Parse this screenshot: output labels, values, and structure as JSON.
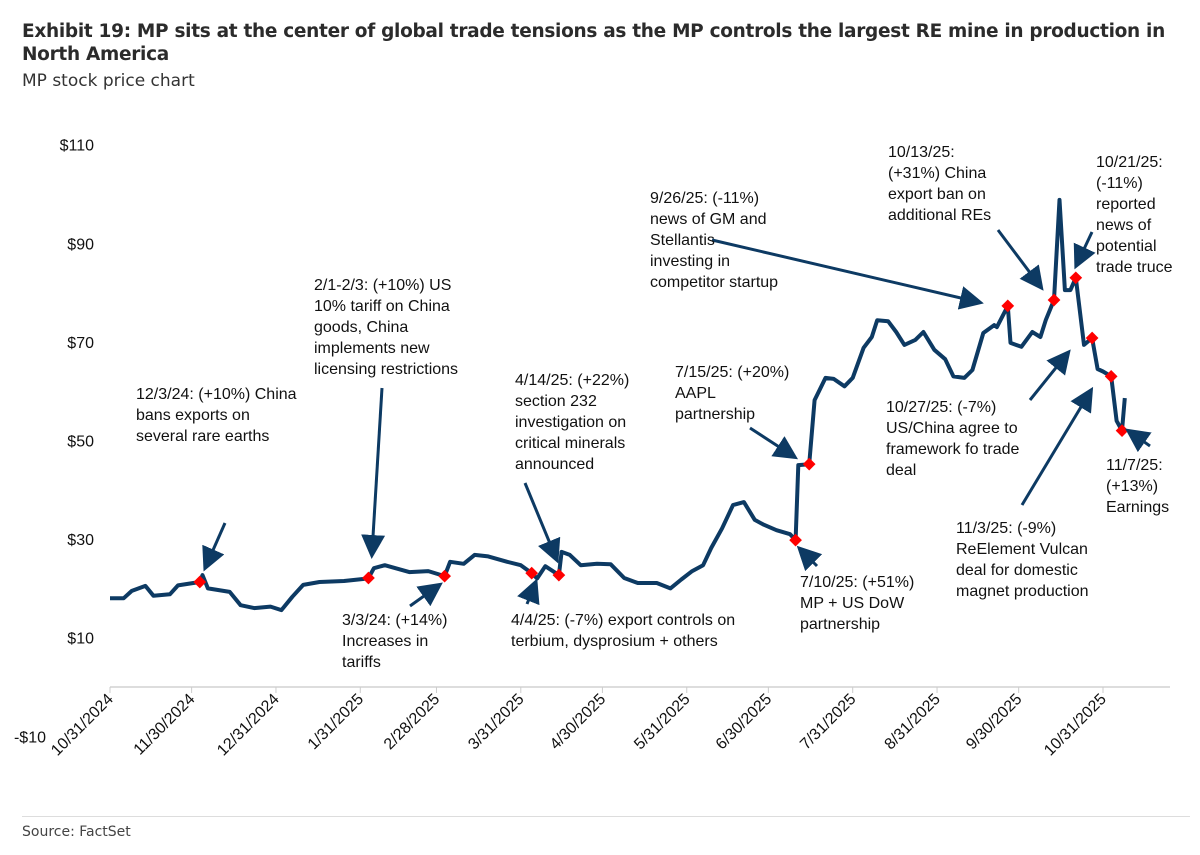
{
  "title": "Exhibit 19: MP sits at the center of global trade tensions as the MP controls the largest RE mine in production in North America",
  "subtitle": "MP stock price chart",
  "source": "Source: FactSet",
  "colors": {
    "line": "#0d3a63",
    "marker": "#ff0000",
    "arrow": "#0d3a63"
  },
  "chart_data": {
    "type": "line",
    "title": "",
    "xlabel": "",
    "ylabel": "",
    "ylim": [
      -10,
      110
    ],
    "y_ticks": [
      "-$10",
      "$10",
      "$30",
      "$50",
      "$70",
      "$90",
      "$110"
    ],
    "y_tick_values": [
      -10,
      10,
      30,
      50,
      70,
      90,
      110
    ],
    "x_ticks": [
      "10/31/2024",
      "11/30/2024",
      "12/31/2024",
      "1/31/2025",
      "2/28/2025",
      "3/31/2025",
      "4/30/2025",
      "5/31/2025",
      "6/30/2025",
      "7/31/2025",
      "8/31/2025",
      "9/30/2025",
      "10/31/2025"
    ],
    "grid": false,
    "series": [
      {
        "points": [
          [
            "2024-10-31",
            18
          ],
          [
            "2024-11-05",
            18
          ],
          [
            "2024-11-08",
            19.5
          ],
          [
            "2024-11-13",
            20.5
          ],
          [
            "2024-11-16",
            18.5
          ],
          [
            "2024-11-22",
            18.8
          ],
          [
            "2024-11-25",
            20.6
          ],
          [
            "2024-12-03",
            21.3
          ],
          [
            "2024-12-04",
            22.7
          ],
          [
            "2024-12-06",
            20
          ],
          [
            "2024-12-14",
            19.3
          ],
          [
            "2024-12-18",
            16.6
          ],
          [
            "2024-12-23",
            16
          ],
          [
            "2024-12-29",
            16.3
          ],
          [
            "2025-01-02",
            15.6
          ],
          [
            "2025-01-06",
            18.3
          ],
          [
            "2025-01-10",
            20.7
          ],
          [
            "2025-01-16",
            21.3
          ],
          [
            "2025-01-25",
            21.5
          ],
          [
            "2025-02-01",
            21.9
          ],
          [
            "2025-02-03",
            22.1
          ],
          [
            "2025-02-05",
            24.1
          ],
          [
            "2025-02-09",
            24.7
          ],
          [
            "2025-02-18",
            23.3
          ],
          [
            "2025-02-25",
            23.5
          ],
          [
            "2025-03-03",
            22.5
          ],
          [
            "2025-03-05",
            25.4
          ],
          [
            "2025-03-10",
            25
          ],
          [
            "2025-03-14",
            26.8
          ],
          [
            "2025-03-19",
            26.5
          ],
          [
            "2025-03-26",
            25.4
          ],
          [
            "2025-03-31",
            24.7
          ],
          [
            "2025-04-04",
            23.1
          ],
          [
            "2025-04-06",
            22
          ],
          [
            "2025-04-09",
            24.5
          ],
          [
            "2025-04-14",
            22.7
          ],
          [
            "2025-04-15",
            27.4
          ],
          [
            "2025-04-18",
            26.8
          ],
          [
            "2025-04-22",
            24.7
          ],
          [
            "2025-04-28",
            25
          ],
          [
            "2025-05-03",
            24.9
          ],
          [
            "2025-05-08",
            22.1
          ],
          [
            "2025-05-13",
            21.1
          ],
          [
            "2025-05-20",
            21.1
          ],
          [
            "2025-05-25",
            20
          ],
          [
            "2025-05-29",
            21.8
          ],
          [
            "2025-06-02",
            23.5
          ],
          [
            "2025-06-06",
            24.7
          ],
          [
            "2025-06-09",
            28.2
          ],
          [
            "2025-06-13",
            32.2
          ],
          [
            "2025-06-17",
            36.9
          ],
          [
            "2025-06-21",
            37.5
          ],
          [
            "2025-06-25",
            33.9
          ],
          [
            "2025-06-28",
            33
          ],
          [
            "2025-07-03",
            31.8
          ],
          [
            "2025-07-08",
            31
          ],
          [
            "2025-07-10",
            29.8
          ],
          [
            "2025-07-11",
            45
          ],
          [
            "2025-07-15",
            45.2
          ],
          [
            "2025-07-17",
            58.2
          ],
          [
            "2025-07-21",
            62.7
          ],
          [
            "2025-07-24",
            62.5
          ],
          [
            "2025-07-28",
            61
          ],
          [
            "2025-07-31",
            62.7
          ],
          [
            "2025-08-04",
            68.8
          ],
          [
            "2025-08-07",
            71
          ],
          [
            "2025-08-09",
            74.4
          ],
          [
            "2025-08-13",
            74.2
          ],
          [
            "2025-08-16",
            72
          ],
          [
            "2025-08-19",
            69.4
          ],
          [
            "2025-08-23",
            70.4
          ],
          [
            "2025-08-26",
            72
          ],
          [
            "2025-08-30",
            68.4
          ],
          [
            "2025-09-03",
            66.5
          ],
          [
            "2025-09-06",
            63
          ],
          [
            "2025-09-10",
            62.7
          ],
          [
            "2025-09-13",
            64.3
          ],
          [
            "2025-09-17",
            71.8
          ],
          [
            "2025-09-21",
            73.4
          ],
          [
            "2025-09-22",
            73
          ],
          [
            "2025-09-26",
            77.3
          ],
          [
            "2025-09-27",
            69.8
          ],
          [
            "2025-10-01",
            69
          ],
          [
            "2025-10-05",
            72
          ],
          [
            "2025-10-08",
            71
          ],
          [
            "2025-10-10",
            74.5
          ],
          [
            "2025-10-13",
            78.5
          ],
          [
            "2025-10-15",
            98.8
          ],
          [
            "2025-10-17",
            80.5
          ],
          [
            "2025-10-19",
            80.5
          ],
          [
            "2025-10-21",
            83
          ],
          [
            "2025-10-24",
            69.4
          ],
          [
            "2025-10-27",
            70.8
          ],
          [
            "2025-10-29",
            64.5
          ],
          [
            "2025-10-31",
            64
          ],
          [
            "2025-11-03",
            63
          ],
          [
            "2025-11-05",
            54
          ],
          [
            "2025-11-07",
            52
          ],
          [
            "2025-11-08",
            58.6
          ]
        ]
      }
    ],
    "event_markers": [
      "2024-12-03",
      "2025-02-03",
      "2025-03-03",
      "2025-04-04",
      "2025-04-14",
      "2025-07-10",
      "2025-07-15",
      "2025-09-26",
      "2025-10-13",
      "2025-10-21",
      "2025-10-27",
      "2025-11-03",
      "2025-11-07"
    ],
    "annotations": [
      "12/3/24: (+10%) China\nbans exports on\nseveral rare earths",
      "2/1-2/3: (+10%) US\n10% tariff on China\ngoods, China\nimplements new\nlicensing restrictions",
      "3/3/24: (+14%)\nIncreases in\ntariffs",
      "4/14/25: (+22%)\nsection 232\ninvestigation on\ncritical minerals\nannounced",
      "4/4/25: (-7%) export controls on\nterbium, dysprosium + others",
      "7/15/25: (+20%)\nAAPL\npartnership",
      "7/10/25: (+51%)\nMP + US DoW\npartnership",
      "9/26/25: (-11%)\nnews of GM and\nStellantis\ninvesting in\ncompetitor startup",
      "10/13/25:\n(+31%) China\nexport ban on\nadditional REs",
      "10/21/25:\n(-11%)\nreported\nnews of\npotential\ntrade truce",
      "10/27/25: (-7%)\nUS/China agree to\nframework fo trade\ndeal",
      "11/3/25: (-9%)\nReElement Vulcan\ndeal for domestic\nmagnet production",
      "11/7/25:\n(+13%)\nEarnings"
    ]
  }
}
